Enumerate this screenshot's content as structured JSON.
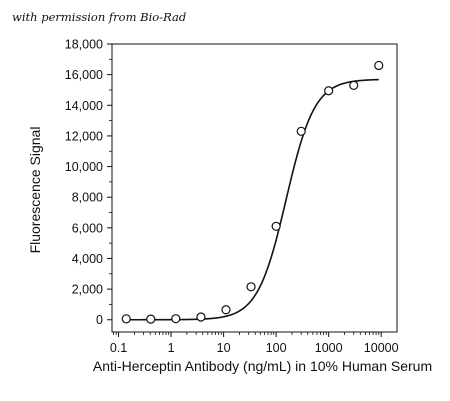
{
  "figure": {
    "credit": "with permission from Bio-Rad"
  },
  "chart_data": {
    "type": "scatter",
    "xlabel": "Anti-Herceptin Antibody (ng/mL) in 10% Human Serum",
    "ylabel": "Fluorescence Signal",
    "x_scale": "log",
    "xlim": [
      0.075,
      20000
    ],
    "ylim": [
      -800,
      18000
    ],
    "x_ticks": [
      0.1,
      1,
      10,
      100,
      1000,
      10000
    ],
    "x_tick_labels": [
      "0.1",
      "1",
      "10",
      "100",
      "1000",
      "10000"
    ],
    "y_ticks": [
      0,
      2000,
      4000,
      6000,
      8000,
      10000,
      12000,
      14000,
      16000,
      18000
    ],
    "y_tick_labels": [
      "0",
      "2,000",
      "4,000",
      "6,000",
      "8,000",
      "10,000",
      "12,000",
      "14,000",
      "16,000",
      "18,000"
    ],
    "grid": false,
    "series": [
      {
        "kind": "points",
        "marker": "open-circle",
        "x": [
          0.14,
          0.41,
          1.23,
          3.7,
          11.1,
          33.3,
          100,
          300,
          1000,
          3000,
          9000
        ],
        "y": [
          60,
          40,
          70,
          180,
          650,
          2150,
          6100,
          12300,
          14950,
          15300,
          16600
        ]
      },
      {
        "kind": "fit-curve",
        "model": "4PL",
        "bottom": 0,
        "top": 15700,
        "ec50": 155,
        "hill": 1.6,
        "x_range": [
          0.14,
          9000
        ]
      }
    ],
    "colors": {
      "ink": "#111111"
    }
  }
}
